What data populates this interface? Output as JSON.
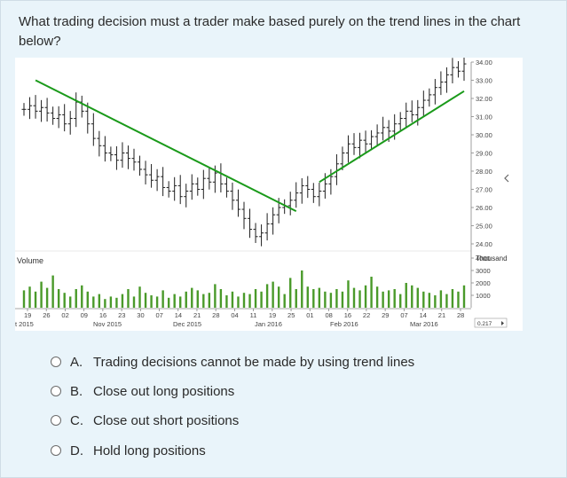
{
  "question": {
    "text": "What trading decision must a trader make based purely on the trend lines in the chart below?"
  },
  "chart": {
    "volume_label": "Volume",
    "volume_unit_label": "Thousand",
    "small_badge": "0.217",
    "colors": {
      "trendline": "#1a9a1a",
      "bars": "#1e1e1e",
      "volume": "#4a9a2a",
      "grid": "#d8d8d8"
    }
  },
  "chart_data": {
    "type": "bar",
    "price_axis": {
      "ticks": [
        "34.00",
        "33.00",
        "32.00",
        "31.00",
        "30.00",
        "29.00",
        "28.00",
        "27.00",
        "26.00",
        "25.00",
        "24.00"
      ],
      "ylim": [
        24,
        34
      ]
    },
    "volume_axis": {
      "ticks": [
        "4000",
        "3000",
        "2000",
        "1000"
      ],
      "ylim": [
        0,
        4000
      ]
    },
    "x_tick_labels": [
      "19",
      "26",
      "02",
      "09",
      "16",
      "23",
      "30",
      "07",
      "14",
      "21",
      "28",
      "04",
      "11",
      "19",
      "25",
      "01",
      "08",
      "16",
      "22",
      "29",
      "07",
      "14",
      "21",
      "28"
    ],
    "x_month_labels": [
      "t 2015",
      "Nov 2015",
      "Dec 2015",
      "Jan 2016",
      "Feb 2016",
      "Mar 2016"
    ],
    "price_series": [
      31.4,
      31.6,
      31.3,
      31.5,
      31.2,
      30.9,
      31.1,
      30.6,
      30.9,
      31.8,
      31.3,
      30.6,
      29.8,
      29.4,
      29.0,
      28.9,
      28.6,
      29.0,
      28.7,
      28.5,
      28.1,
      27.8,
      27.5,
      27.7,
      27.1,
      26.9,
      27.2,
      26.6,
      26.9,
      27.3,
      27.0,
      27.6,
      27.4,
      27.9,
      27.3,
      26.9,
      26.4,
      25.9,
      25.4,
      24.8,
      24.4,
      24.6,
      25.1,
      25.6,
      26.0,
      26.1,
      26.4,
      26.8,
      27.2,
      27.0,
      26.6,
      26.9,
      27.3,
      27.7,
      28.4,
      29.0,
      29.5,
      29.3,
      29.7,
      29.5,
      29.9,
      30.1,
      30.4,
      30.2,
      30.6,
      30.9,
      31.3,
      31.1,
      31.5,
      31.9,
      32.2,
      32.6,
      32.9,
      33.3,
      33.7,
      33.5,
      33.9
    ],
    "volume_series": [
      1400,
      1700,
      1300,
      2100,
      1600,
      2600,
      1500,
      1200,
      900,
      1500,
      1800,
      1300,
      900,
      1100,
      700,
      900,
      800,
      1100,
      1500,
      900,
      1700,
      1200,
      1000,
      900,
      1400,
      800,
      1100,
      900,
      1300,
      1600,
      1400,
      1100,
      1200,
      1900,
      1500,
      1000,
      1300,
      900,
      1200,
      1100,
      1500,
      1300,
      1900,
      2100,
      1700,
      1100,
      2400,
      1500,
      3000,
      1700,
      1500,
      1600,
      1300,
      1200,
      1500,
      1300,
      2200,
      1600,
      1400,
      1800,
      2500,
      1700,
      1300,
      1400,
      1500,
      1100,
      2000,
      1800,
      1600,
      1300,
      1200,
      1000,
      1400,
      1100,
      1500,
      1300,
      1800
    ],
    "trendlines": [
      {
        "name": "",
        "start": {
          "index": 2,
          "value": 33.0
        },
        "end": {
          "index": 47,
          "value": 25.8
        }
      },
      {
        "name": "",
        "start": {
          "index": 51,
          "value": 27.4
        },
        "end": {
          "index": 76,
          "value": 32.4
        }
      }
    ]
  },
  "options": [
    {
      "letter": "A.",
      "text": "Trading decisions cannot be made by using trend lines"
    },
    {
      "letter": "B.",
      "text": "Close out long positions"
    },
    {
      "letter": "C.",
      "text": "Close out short positions"
    },
    {
      "letter": "D.",
      "text": "Hold long positions"
    }
  ]
}
